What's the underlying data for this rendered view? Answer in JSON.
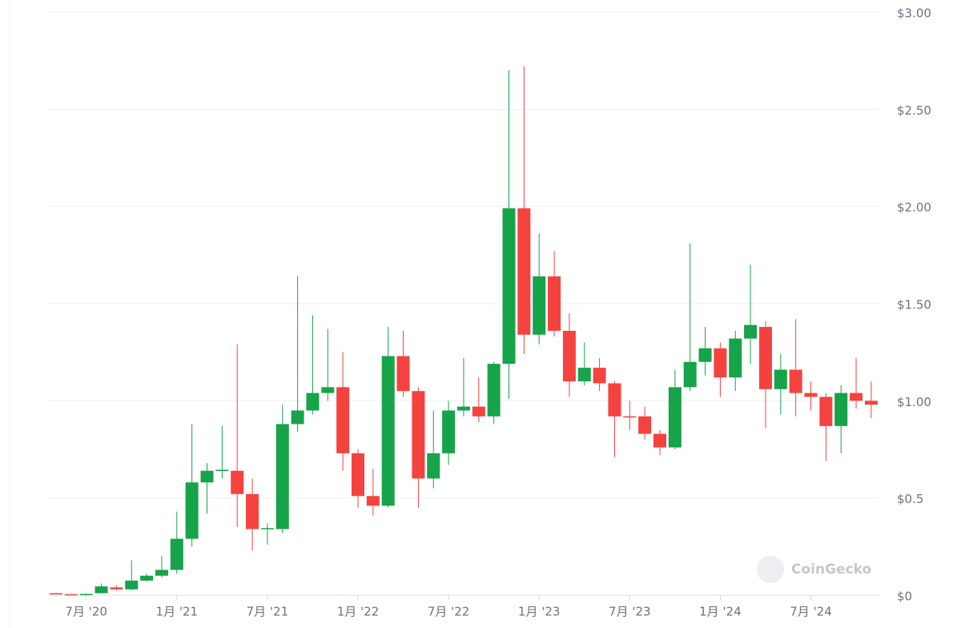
{
  "chart_data": {
    "type": "candlestick",
    "watermark": "CoinGecko",
    "categories": [
      null,
      null,
      "7月 '20",
      null,
      null,
      null,
      null,
      null,
      "1月 '21",
      null,
      null,
      null,
      null,
      null,
      "7月 '21",
      null,
      null,
      null,
      null,
      null,
      "1月 '22",
      null,
      null,
      null,
      null,
      null,
      "7月 '22",
      null,
      null,
      null,
      null,
      null,
      "1月 '23",
      null,
      null,
      null,
      null,
      null,
      "7月 '23",
      null,
      null,
      null,
      null,
      null,
      "1月 '24",
      null,
      null,
      null,
      null,
      null,
      "7月 '24",
      null,
      null,
      null,
      null
    ],
    "open": [
      0.01,
      0.005,
      0.002,
      0.01,
      0.04,
      0.03,
      0.075,
      0.1,
      0.13,
      0.29,
      0.58,
      0.64,
      0.64,
      0.52,
      0.34,
      0.34,
      0.88,
      0.95,
      1.04,
      1.07,
      0.73,
      0.51,
      0.46,
      1.23,
      1.05,
      0.6,
      0.73,
      0.95,
      0.97,
      0.92,
      1.19,
      1.99,
      1.34,
      1.64,
      1.36,
      1.1,
      1.17,
      1.09,
      0.92,
      0.92,
      0.83,
      0.76,
      1.07,
      1.2,
      1.27,
      1.12,
      1.32,
      1.38,
      1.06,
      1.16,
      1.04,
      1.02,
      0.87,
      1.04,
      1.0
    ],
    "high": [
      0.012,
      0.006,
      0.008,
      0.06,
      0.05,
      0.18,
      0.11,
      0.2,
      0.43,
      0.88,
      0.68,
      0.87,
      1.29,
      0.6,
      0.37,
      0.98,
      1.64,
      1.44,
      1.37,
      1.25,
      0.75,
      0.65,
      1.38,
      1.36,
      1.07,
      0.95,
      1.0,
      1.22,
      1.12,
      1.2,
      2.7,
      2.72,
      1.86,
      1.77,
      1.45,
      1.3,
      1.22,
      1.1,
      1.0,
      0.97,
      0.85,
      1.16,
      1.81,
      1.38,
      1.3,
      1.36,
      1.7,
      1.41,
      1.24,
      1.42,
      1.1,
      1.04,
      1.08,
      1.22,
      1.1
    ],
    "low": [
      0.004,
      0.002,
      0.001,
      0.008,
      0.025,
      0.025,
      0.07,
      0.09,
      0.11,
      0.25,
      0.42,
      0.6,
      0.35,
      0.23,
      0.26,
      0.32,
      0.84,
      0.93,
      1.0,
      0.64,
      0.45,
      0.41,
      0.45,
      1.02,
      0.45,
      0.55,
      0.67,
      0.92,
      0.89,
      0.88,
      1.01,
      1.24,
      1.29,
      1.33,
      1.02,
      1.08,
      1.05,
      0.71,
      0.85,
      0.8,
      0.72,
      0.75,
      1.05,
      1.13,
      1.02,
      1.05,
      1.19,
      0.86,
      0.93,
      0.92,
      0.95,
      0.69,
      0.73,
      0.96,
      0.91
    ],
    "close": [
      0.005,
      0.003,
      0.006,
      0.045,
      0.03,
      0.075,
      0.1,
      0.13,
      0.29,
      0.58,
      0.64,
      0.645,
      0.52,
      0.34,
      0.345,
      0.88,
      0.95,
      1.04,
      1.07,
      0.73,
      0.51,
      0.46,
      1.23,
      1.05,
      0.6,
      0.73,
      0.95,
      0.97,
      0.92,
      1.19,
      1.99,
      1.34,
      1.64,
      1.36,
      1.1,
      1.17,
      1.09,
      0.92,
      0.915,
      0.83,
      0.76,
      1.07,
      1.2,
      1.27,
      1.12,
      1.32,
      1.39,
      1.06,
      1.16,
      1.04,
      1.02,
      0.87,
      1.04,
      1.0,
      0.98
    ],
    "up_color": "#16a34a",
    "down_color": "#f4433f",
    "ylim": [
      0,
      3
    ],
    "yticks": [
      {
        "value": 0,
        "label": "$0"
      },
      {
        "value": 0.5,
        "label": "$0.5"
      },
      {
        "value": 1,
        "label": "$1.00"
      },
      {
        "value": 1.5,
        "label": "$1.50"
      },
      {
        "value": 2,
        "label": "$2.00"
      },
      {
        "value": 2.5,
        "label": "$2.50"
      },
      {
        "value": 3,
        "label": "$3.00"
      }
    ],
    "grid": true
  }
}
